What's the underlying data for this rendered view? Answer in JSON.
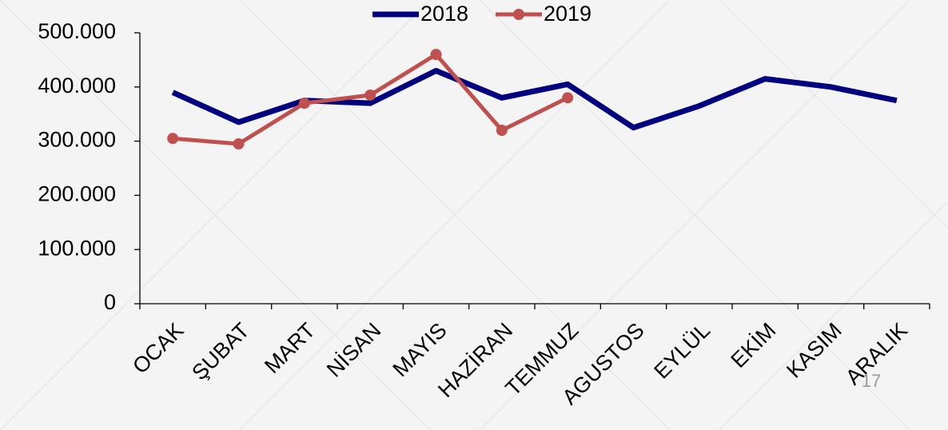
{
  "chart_data": {
    "type": "line",
    "categories": [
      "OCAK",
      "ŞUBAT",
      "MART",
      "NİSAN",
      "MAYIS",
      "HAZİRAN",
      "TEMMUZ",
      "AGUSTOS",
      "EYLÜL",
      "EKİM",
      "KASIM",
      "ARALIK"
    ],
    "series": [
      {
        "name": "2018",
        "color": "#000080",
        "values": [
          390000,
          335000,
          375000,
          370000,
          430000,
          380000,
          405000,
          325000,
          365000,
          415000,
          400000,
          375000
        ]
      },
      {
        "name": "2019",
        "color": "#c0504d",
        "values": [
          305000,
          295000,
          370000,
          385000,
          460000,
          320000,
          380000,
          null,
          null,
          null,
          null,
          null
        ]
      }
    ],
    "ylim": [
      0,
      500000
    ],
    "yticks": [
      0,
      {
        "value": 100000,
        "label": "100.000"
      },
      {
        "value": 200000,
        "label": "200.000"
      },
      {
        "value": 300000,
        "label": "300.000"
      },
      {
        "value": 400000,
        "label": "400.000"
      },
      {
        "value": 500000,
        "label": "500.000"
      }
    ],
    "grid": false,
    "legend": "top"
  },
  "slide_number": "17"
}
